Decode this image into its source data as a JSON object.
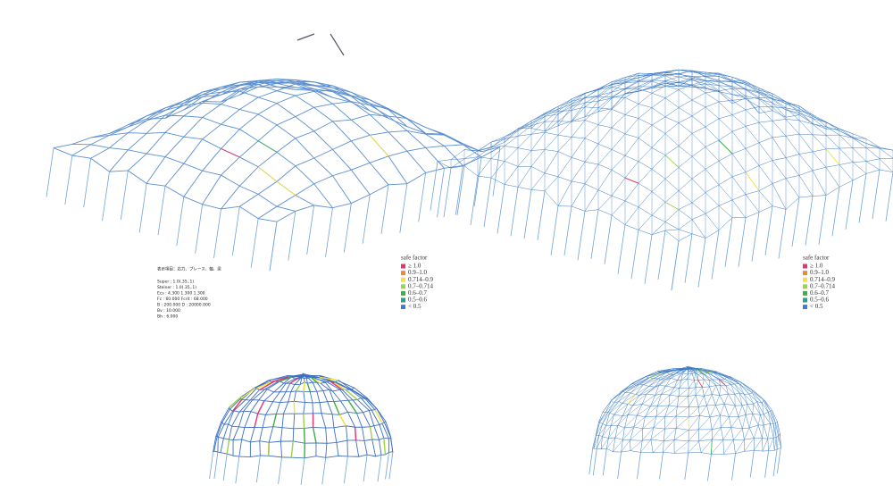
{
  "info": {
    "title": "表示項目：応力、ブレース、軸、梁",
    "lines": [
      "Super : 1.0(.35,.1)",
      "Steiner : 1.0(.35,.1)",
      "Ecs : 4.300 1.300 1.300",
      "Fc : 60.000 Fcrit : 68.000",
      "B : 200.000 D : 20000.000",
      "Bv : 10.000",
      "Bh : 6.000"
    ]
  },
  "legends": [
    {
      "title": "safe factor",
      "items": [
        {
          "label": "≥ 1.0",
          "color": "#e8336b"
        },
        {
          "label": "0.9–1.0",
          "color": "#f08a2c"
        },
        {
          "label": "0.714–0.9",
          "color": "#f2e33a"
        },
        {
          "label": "0.7–0.714",
          "color": "#9fd44a"
        },
        {
          "label": "0.6–0.7",
          "color": "#3fae49"
        },
        {
          "label": "0.5–0.6",
          "color": "#2aa08c"
        },
        {
          "label": "< 0.5",
          "color": "#3a7fc8"
        }
      ]
    },
    {
      "title": "safe factor",
      "items": [
        {
          "label": "≥ 1.0",
          "color": "#e8336b"
        },
        {
          "label": "0.9–1.0",
          "color": "#f08a2c"
        },
        {
          "label": "0.714–0.9",
          "color": "#f2e33a"
        },
        {
          "label": "0.7–0.714",
          "color": "#9fd44a"
        },
        {
          "label": "0.6–0.7",
          "color": "#3fae49"
        },
        {
          "label": "0.5–0.6",
          "color": "#2aa08c"
        },
        {
          "label": "< 0.5",
          "color": "#3a7fc8"
        }
      ]
    }
  ]
}
